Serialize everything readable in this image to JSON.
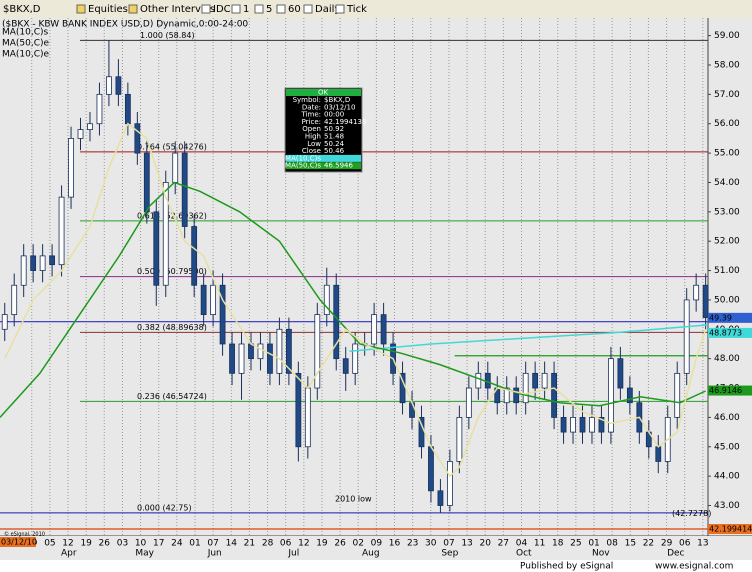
{
  "toolbar": [
    "$BKX,D",
    "Equities",
    "Other Intervals",
    "IDC",
    "1",
    "5",
    "60",
    "Daily",
    "Tick"
  ],
  "chart_data": {
    "type": "candlestick",
    "title": "($BKX - KBW BANK INDEX USD,D) Dynamic,0:00-24:00",
    "date_tag": "03/12/10",
    "copyright": "© eSignal, 2010",
    "annotation": "2010 low",
    "xlim": [
      -0.5,
      74.25
    ],
    "ylim": [
      42.2,
      59.6
    ],
    "grid": "x",
    "colors": {
      "up": "#ffffff",
      "down": "#1f4a86",
      "outline": "#1a2f5a"
    },
    "yticks": [
      {
        "value": 43,
        "label": "43.00"
      },
      {
        "value": 44,
        "label": "44.00"
      },
      {
        "value": 45,
        "label": "45.00"
      },
      {
        "value": 46,
        "label": "46.00"
      },
      {
        "value": 47,
        "label": "47.00"
      },
      {
        "value": 48,
        "label": "48.00"
      },
      {
        "value": 49,
        "label": "49.00"
      },
      {
        "value": 50,
        "label": "50.00"
      },
      {
        "value": 51,
        "label": "51.00"
      },
      {
        "value": 52,
        "label": "52.00"
      },
      {
        "value": 53,
        "label": "53.00"
      },
      {
        "value": 54,
        "label": "54.00"
      },
      {
        "value": 55,
        "label": "55.00"
      },
      {
        "value": 56,
        "label": "56.00"
      },
      {
        "value": 57,
        "label": "57.00"
      },
      {
        "value": 58,
        "label": "58.00"
      },
      {
        "value": 59,
        "label": "59.00"
      }
    ],
    "xticks": [
      {
        "value": 2.85,
        "label": "29"
      },
      {
        "value": 4.77,
        "label": "05"
      },
      {
        "value": 6.68,
        "label": "12"
      },
      {
        "value": 8.6,
        "label": "19"
      },
      {
        "value": 10.51,
        "label": "26"
      },
      {
        "value": 12.43,
        "label": "03"
      },
      {
        "value": 14.34,
        "label": "10"
      },
      {
        "value": 16.26,
        "label": "17"
      },
      {
        "value": 18.17,
        "label": "24"
      },
      {
        "value": 20.09,
        "label": "01"
      },
      {
        "value": 22.0,
        "label": "07"
      },
      {
        "value": 23.92,
        "label": "14"
      },
      {
        "value": 25.83,
        "label": "21"
      },
      {
        "value": 27.75,
        "label": "28"
      },
      {
        "value": 29.66,
        "label": "06"
      },
      {
        "value": 31.58,
        "label": "12"
      },
      {
        "value": 33.49,
        "label": "19"
      },
      {
        "value": 35.41,
        "label": "26"
      },
      {
        "value": 37.32,
        "label": "02"
      },
      {
        "value": 39.24,
        "label": "09"
      },
      {
        "value": 41.15,
        "label": "16"
      },
      {
        "value": 43.07,
        "label": "23"
      },
      {
        "value": 44.98,
        "label": "30"
      },
      {
        "value": 46.9,
        "label": "07"
      },
      {
        "value": 48.81,
        "label": "13"
      },
      {
        "value": 50.73,
        "label": "20"
      },
      {
        "value": 52.64,
        "label": "27"
      },
      {
        "value": 54.56,
        "label": "04"
      },
      {
        "value": 56.47,
        "label": "11"
      },
      {
        "value": 58.39,
        "label": "18"
      },
      {
        "value": 60.3,
        "label": "25"
      },
      {
        "value": 62.22,
        "label": "01"
      },
      {
        "value": 64.13,
        "label": "08"
      },
      {
        "value": 66.05,
        "label": "15"
      },
      {
        "value": 67.96,
        "label": "22"
      },
      {
        "value": 69.88,
        "label": "29"
      },
      {
        "value": 71.79,
        "label": "06"
      },
      {
        "value": 73.71,
        "label": "13"
      }
    ],
    "months": [
      {
        "value": 6.76,
        "label": "Apr"
      },
      {
        "value": 14.78,
        "label": "May"
      },
      {
        "value": 22.17,
        "label": "Jun"
      },
      {
        "value": 30.52,
        "label": "Jul"
      },
      {
        "value": 38.65,
        "label": "Aug"
      },
      {
        "value": 46.99,
        "label": "Sep"
      },
      {
        "value": 54.8,
        "label": "Oct"
      },
      {
        "value": 62.93,
        "label": "Nov"
      },
      {
        "value": 70.85,
        "label": "Dec"
      }
    ],
    "open": [
      49.0,
      49.5,
      50.5,
      51.5,
      51,
      51.5,
      51.2,
      53.5,
      55.5,
      55.8,
      56,
      57,
      57.6,
      57,
      56,
      55,
      53,
      50.5,
      54,
      55,
      52.5,
      50.5,
      49.5,
      50.5,
      48.5,
      47.5,
      48.5,
      48,
      48.5,
      47.5,
      49,
      47.5,
      45,
      47,
      49.5,
      50.5,
      48,
      47.5,
      48.5,
      48.5,
      49.5,
      48.5,
      47.5,
      46.5,
      46,
      45,
      43.5,
      43,
      44.5,
      46,
      47,
      47.5,
      47,
      46.5,
      47,
      46.5,
      47.5,
      47,
      47.5,
      46,
      45.5,
      46,
      45.5,
      46,
      45.5,
      48,
      47,
      46.5,
      45.5,
      45,
      44.5,
      46,
      47.5,
      50,
      50.5
    ],
    "high": [
      49.9,
      50.9,
      51.9,
      51.9,
      51.9,
      51.9,
      53.9,
      55.9,
      56.2,
      56.4,
      57.4,
      58.84,
      58.2,
      57.4,
      56.4,
      55.4,
      53.4,
      54.4,
      55.4,
      55.4,
      52.9,
      50.9,
      51.0,
      50.9,
      48.9,
      48.9,
      48.9,
      48.9,
      48.9,
      49.4,
      49.4,
      47.9,
      47.4,
      49.9,
      51.1,
      50.9,
      48.4,
      48.9,
      48.9,
      49.9,
      49.9,
      48.9,
      47.9,
      46.9,
      46.4,
      45.4,
      43.9,
      44.9,
      46.4,
      47.4,
      47.9,
      47.9,
      47.4,
      47.4,
      47.4,
      47.9,
      47.9,
      47.9,
      47.9,
      46.4,
      46.4,
      46.4,
      46.4,
      46.4,
      48.4,
      48.4,
      47.4,
      46.9,
      45.9,
      45.4,
      46.4,
      47.9,
      50.4,
      50.9,
      50.9
    ],
    "low": [
      48.6,
      49.1,
      50.1,
      50.6,
      50.6,
      50.8,
      50.8,
      53.1,
      55.1,
      55.4,
      55.6,
      56.6,
      56.6,
      55.6,
      54.6,
      52.6,
      49.8,
      50.1,
      53.6,
      52.1,
      50.1,
      49.1,
      49.1,
      48.1,
      47.1,
      46.6,
      47.6,
      47.6,
      47.1,
      47.1,
      47.1,
      44.5,
      44.6,
      46.6,
      49.1,
      47.6,
      46.9,
      47.1,
      48.1,
      48.1,
      48.1,
      47.1,
      46.1,
      45.6,
      44.6,
      43.1,
      42.75,
      42.8,
      44.1,
      45.6,
      46.6,
      46.6,
      46.1,
      46.1,
      46.1,
      46.1,
      46.6,
      46.6,
      45.6,
      45.1,
      45.1,
      45.1,
      45.1,
      45.1,
      45.1,
      46.6,
      46.1,
      45.1,
      44.6,
      44.1,
      44.1,
      45.6,
      47.1,
      49.6,
      49.0
    ],
    "close": [
      49.5,
      50.5,
      51.5,
      51,
      51.5,
      51.2,
      53.5,
      55.5,
      55.8,
      56,
      57,
      57.6,
      57,
      56,
      55,
      53,
      50.5,
      54,
      55,
      52.5,
      50.5,
      49.5,
      50.5,
      48.5,
      47.5,
      48.5,
      48,
      48.5,
      47.5,
      49,
      47.5,
      45,
      47,
      49.5,
      50.5,
      48,
      47.5,
      48.5,
      48.5,
      49.5,
      48.5,
      47.5,
      46.5,
      46,
      45,
      43.5,
      43,
      44.5,
      46,
      47,
      47.5,
      47,
      46.5,
      47,
      46.5,
      47.5,
      47,
      47.5,
      46,
      45.5,
      46,
      45.5,
      46,
      45.5,
      48,
      47,
      46.5,
      45.5,
      45,
      44.5,
      46,
      47.5,
      50,
      50.5,
      49.4
    ],
    "series": [
      {
        "name": "MA(10,C)s",
        "color": "#40d8d8",
        "x": [
          36.4,
          45,
          55,
          65,
          74.24
        ],
        "values": [
          48.25,
          48.5,
          48.7,
          48.9,
          49.15
        ]
      },
      {
        "name": "MA(50,C)e",
        "color": "#1c9a1c",
        "x": [
          -0.5,
          3.7,
          7.9,
          12.1,
          15.3,
          17.9,
          20.6,
          24.8,
          29.0,
          33.3,
          37.5,
          41.7,
          45.9,
          50.2,
          54.4,
          58.6,
          62.8,
          67.1,
          71.3,
          74.0
        ],
        "values": [
          46,
          47.5,
          49.5,
          51.5,
          53.2,
          54,
          53.7,
          53,
          52,
          50,
          48.5,
          48.2,
          47.8,
          47.3,
          46.8,
          46.5,
          46.4,
          46.7,
          46.5,
          46.9
        ]
      },
      {
        "name": "MA(10,C)e",
        "color": "#e8e0a0",
        "x": [
          0,
          3,
          6,
          9,
          11,
          13,
          15,
          17,
          19,
          21,
          23,
          26,
          29,
          32,
          34,
          36,
          38,
          41,
          43,
          45,
          47,
          48,
          50,
          52,
          55,
          58,
          61,
          64,
          67,
          69,
          71,
          73,
          74
        ],
        "values": [
          48,
          50,
          51,
          52.5,
          54.5,
          56,
          55.5,
          53.5,
          52,
          51.5,
          50,
          48.5,
          48,
          47,
          48,
          49,
          48.5,
          48,
          46.5,
          45,
          44,
          44.3,
          46,
          47,
          46.8,
          47,
          46.2,
          45.8,
          46,
          45,
          45.5,
          48,
          49
        ]
      }
    ],
    "levels": [
      {
        "value": 58.84,
        "label": "1.000 (58.84)",
        "color": "#333333"
      },
      {
        "value": 55.04276,
        "label": "0.764 (55.04276)",
        "color": "#a01818"
      },
      {
        "value": 52.69362,
        "label": "0.618 (52.69362)",
        "color": "#2a9a2a"
      },
      {
        "value": 50.795,
        "label": "0.500 (50.79500)",
        "color": "#8a2a8a"
      },
      {
        "value": 48.89638,
        "label": "0.382 (48.89638)",
        "color": "#8b3030"
      },
      {
        "value": 46.54724,
        "label": "0.236 (46.54724)",
        "color": "#2a9a2a"
      },
      {
        "value": 42.75,
        "label": "0.000 (42.75)",
        "color": "#1a1ab0"
      }
    ],
    "lines": [
      {
        "value": 49.26,
        "color": "#3030c0",
        "x_start": -0.5
      },
      {
        "value": 48.1,
        "color": "#1c9a1c",
        "x_start": 47.5
      },
      {
        "value": 42.199414,
        "color": "#e04010",
        "x_start": -0.5
      }
    ],
    "price_labels": [
      {
        "value": 49.39,
        "label": "49.39",
        "color": "#3060d0"
      },
      {
        "value": 48.8773,
        "label": "48.8773",
        "color": "#40d8d8"
      },
      {
        "value": 46.9146,
        "label": "46.9146",
        "color": "#1c9a1c"
      },
      {
        "value": 42.7278,
        "label": "(42.7278)",
        "color": "none"
      },
      {
        "value": 42.199414,
        "label": "42.199414",
        "color": "#e87020"
      }
    ]
  },
  "tooltip": {
    "header": "OK",
    "rows": [
      [
        "Symbol:",
        "$BKX,D"
      ],
      [
        "Date:",
        "03/12/10"
      ],
      [
        "Time:",
        "00:00"
      ],
      [
        "Price:",
        "42.1994138"
      ],
      [
        "Open",
        "50.92"
      ],
      [
        "High",
        "51.48"
      ],
      [
        "Low",
        "50.24"
      ],
      [
        "Close",
        "50.46"
      ],
      [
        "MA(10,C)s",
        ""
      ],
      [
        "MA(50,C)s",
        "46.5946"
      ]
    ]
  },
  "footer": {
    "publisher": "Published by eSignal",
    "url": "www.esignal.com"
  }
}
